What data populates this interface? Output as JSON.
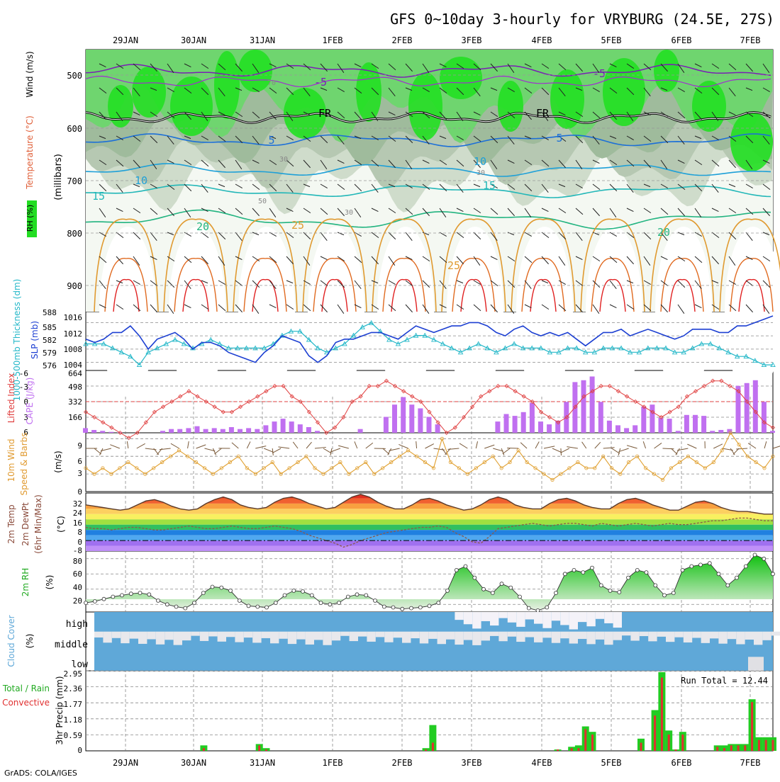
{
  "title": "GFS 0~10day 3-hourly for VRYBURG (24.5E, 27S)",
  "footer": "GrADS: COLA/IGES",
  "dates": [
    "29JAN",
    "30JAN",
    "31JAN",
    "1FEB",
    "2FEB",
    "3FEB",
    "4FEB",
    "5FEB",
    "6FEB",
    "7FEB"
  ],
  "panels": {
    "upper": {
      "ylabel_rh": "RH (%)",
      "ylabel_temp": "Temperature (°C)",
      "ylabel_wind": "Wind (m/s)",
      "ylabel_units": "(millibars)",
      "yticks": [
        "500",
        "600",
        "700",
        "800",
        "900"
      ],
      "contour_labels": [
        "-5",
        "-5",
        "FR",
        "FR",
        "5",
        "5",
        "10",
        "10",
        "15",
        "15",
        "20",
        "20",
        "25",
        "25",
        "30",
        "30",
        "30",
        "50",
        "70"
      ]
    },
    "slp": {
      "ylabel_left": "1000-500mb Thickness (dm)",
      "ylabel_right": "SLP (mb)",
      "yticks_left": [
        "588",
        "585",
        "582",
        "579",
        "576"
      ],
      "yticks_right": [
        "1016",
        "1012",
        "1008",
        "1004"
      ]
    },
    "cape": {
      "ylabel_left": "Lifted Index",
      "ylabel_right": "CAPE (J/kg)",
      "yticks_left": [
        "-6",
        "-3",
        "0",
        "3",
        "6"
      ],
      "yticks_right": [
        "664",
        "498",
        "332",
        "166"
      ]
    },
    "wind10": {
      "ylabel_left": "10m Wind",
      "ylabel_mid": "Speed & Barbs",
      "ylabel_right": "(m/s)",
      "yticks": [
        "9",
        "6",
        "3",
        "0"
      ]
    },
    "temp2m": {
      "ylabel_1": "2m Temp",
      "ylabel_2": "2m DewPt",
      "ylabel_3": "(6hr Min/Max)",
      "ylabel_unit": "(°C)",
      "yticks": [
        "32",
        "24",
        "16",
        "8",
        "0",
        "-8"
      ]
    },
    "rh2m": {
      "ylabel": "2m RH",
      "ylabel_unit": "(%)",
      "yticks": [
        "80",
        "60",
        "40",
        "20"
      ]
    },
    "cloud": {
      "ylabel": "Cloud Cover",
      "ylabel_unit": "(%)",
      "levels": [
        "high",
        "middle",
        "low"
      ]
    },
    "precip": {
      "ylabel_1": "Total / Rain",
      "ylabel_2": "Convective",
      "ylabel_3": "3hr Precip (mm)",
      "yticks": [
        "2.95",
        "2.36",
        "1.77",
        "1.18",
        "0.59",
        "0"
      ],
      "run_total": "Run Total  =  12.44"
    }
  },
  "colors": {
    "rh_green": "#00cc00",
    "slp_line": "#1c3fd2",
    "thickness_line": "#22b7c8",
    "lifted_index": "#e04040",
    "cape_bars": "#c070f0",
    "wind_speed": "#e0a030",
    "rh_2m": "#22cc22",
    "cloud_blue": "#5fa8d8",
    "precip_total": "#22cc22",
    "precip_conv": "#e03030"
  },
  "chart_data": [
    {
      "type": "line",
      "title": "1000-500mb Thickness (dm) / SLP (mb)",
      "x_unit": "3-hourly steps from 28JAN",
      "series": [
        {
          "name": "SLP (mb)",
          "values": [
            1011,
            1010,
            1011,
            1013,
            1013,
            1015,
            1012,
            1008,
            1011,
            1012,
            1013,
            1011,
            1008,
            1010,
            1010,
            1009,
            1007,
            1006,
            1005,
            1004,
            1007,
            1009,
            1012,
            1011,
            1010,
            1006,
            1004,
            1006,
            1010,
            1011,
            1011,
            1012,
            1013,
            1013,
            1012,
            1011,
            1013,
            1015,
            1014,
            1013,
            1014,
            1015,
            1015,
            1016,
            1016,
            1015,
            1013,
            1012,
            1014,
            1015,
            1013,
            1012,
            1013,
            1012,
            1013,
            1011,
            1009,
            1011,
            1013,
            1013,
            1014,
            1012,
            1013,
            1014,
            1013,
            1012,
            1011,
            1012,
            1014,
            1014,
            1014,
            1013,
            1013,
            1015,
            1015,
            1016,
            1017,
            1018
          ]
        },
        {
          "name": "1000-500mb Thickness (dm)",
          "values": [
            581,
            581,
            581,
            580,
            579,
            578,
            576,
            579,
            580,
            581,
            582,
            581,
            580,
            581,
            582,
            581,
            580,
            580,
            580,
            580,
            580,
            581,
            583,
            584,
            584,
            582,
            580,
            579,
            580,
            581,
            583,
            585,
            586,
            584,
            582,
            581,
            582,
            583,
            583,
            582,
            581,
            580,
            579,
            580,
            581,
            580,
            579,
            580,
            581,
            580,
            580,
            580,
            579,
            579,
            580,
            580,
            579,
            579,
            580,
            580,
            580,
            579,
            579,
            580,
            580,
            580,
            579,
            579,
            580,
            581,
            581,
            580,
            579,
            578,
            578,
            577,
            576,
            576
          ]
        }
      ],
      "ylim_slp": [
        1002,
        1018
      ],
      "ylim_thickness": [
        575,
        588
      ]
    },
    {
      "type": "bar",
      "title": "Lifted Index / CAPE (J/kg)",
      "series": [
        {
          "name": "CAPE (J/kg)",
          "values": [
            50,
            30,
            20,
            10,
            5,
            0,
            0,
            0,
            0,
            20,
            40,
            40,
            50,
            70,
            40,
            50,
            40,
            60,
            40,
            50,
            40,
            80,
            120,
            150,
            120,
            90,
            60,
            20,
            0,
            0,
            0,
            0,
            40,
            0,
            0,
            170,
            300,
            380,
            300,
            260,
            170,
            90,
            0,
            0,
            0,
            0,
            0,
            0,
            120,
            200,
            180,
            220,
            320,
            120,
            90,
            130,
            330,
            540,
            560,
            600,
            330,
            130,
            80,
            50,
            80,
            280,
            300,
            160,
            150,
            20,
            190,
            190,
            180,
            20,
            30,
            40,
            500,
            530,
            560,
            330,
            20
          ]
        },
        {
          "name": "Lifted Index",
          "values": [
            2,
            3,
            4,
            5,
            6,
            7,
            6,
            4,
            2,
            1,
            0,
            -1,
            -2,
            -1,
            0,
            1,
            2,
            2,
            1,
            0,
            -1,
            -2,
            -3,
            -3,
            -1,
            0,
            2,
            4,
            6,
            5,
            3,
            0,
            -1,
            -3,
            -3,
            -4,
            -3,
            -2,
            -1,
            0,
            2,
            4,
            6,
            5,
            3,
            1,
            -1,
            -2,
            -3,
            -3,
            -2,
            -1,
            0,
            2,
            3,
            4,
            3,
            1,
            -1,
            -2,
            -3,
            -3,
            -2,
            -1,
            0,
            1,
            2,
            3,
            2,
            1,
            -1,
            -2,
            -3,
            -4,
            -4,
            -3,
            -2,
            0,
            2,
            4,
            5
          ]
        }
      ],
      "ylim_cape": [
        0,
        664
      ],
      "ylim_li": [
        -6,
        6
      ]
    },
    {
      "type": "line",
      "title": "10m Wind Speed & Barbs (m/s)",
      "series": [
        {
          "name": "Speed",
          "values": [
            4,
            3,
            4,
            3,
            4,
            5,
            4,
            3,
            4,
            5,
            6,
            7,
            6,
            5,
            4,
            3,
            4,
            5,
            6,
            4,
            3,
            4,
            5,
            3,
            4,
            5,
            6,
            4,
            3,
            4,
            5,
            3,
            4,
            5,
            3,
            4,
            5,
            6,
            7,
            6,
            5,
            4,
            9,
            5,
            4,
            3,
            4,
            5,
            6,
            4,
            5,
            7,
            5,
            4,
            3,
            2,
            3,
            4,
            5,
            4,
            4,
            6,
            4,
            3,
            5,
            6,
            4,
            3,
            2,
            4,
            5,
            6,
            5,
            4,
            5,
            7,
            10,
            8,
            6,
            5,
            4,
            6
          ]
        }
      ],
      "ylim": [
        0,
        10
      ]
    },
    {
      "type": "area",
      "title": "2m Temp / 2m DewPt (6hr Min/Max) (°C)",
      "series": [
        {
          "name": "2m Temp",
          "values": [
            27,
            26,
            25,
            24,
            23,
            24,
            27,
            30,
            31,
            29,
            26,
            24,
            23,
            24,
            28,
            31,
            33,
            31,
            27,
            25,
            24,
            25,
            29,
            32,
            33,
            31,
            28,
            26,
            24,
            25,
            29,
            33,
            35,
            33,
            29,
            26,
            24,
            24,
            27,
            31,
            32,
            30,
            27,
            25,
            23,
            24,
            27,
            31,
            33,
            31,
            27,
            25,
            24,
            24,
            28,
            31,
            32,
            30,
            27,
            25,
            24,
            24,
            28,
            31,
            32,
            30,
            27,
            25,
            23,
            23,
            26,
            29,
            30,
            28,
            25,
            23,
            22,
            22,
            21,
            20,
            20
          ]
        },
        {
          "name": "2m DewPt",
          "values": [
            10,
            9,
            9,
            8,
            9,
            10,
            10,
            9,
            8,
            8,
            9,
            10,
            11,
            10,
            9,
            9,
            10,
            11,
            10,
            9,
            9,
            10,
            11,
            10,
            9,
            7,
            4,
            2,
            0,
            -2,
            -5,
            -3,
            0,
            2,
            4,
            6,
            7,
            8,
            9,
            10,
            10,
            11,
            10,
            6,
            3,
            -1,
            -2,
            3,
            9,
            10,
            11,
            12,
            13,
            12,
            11,
            12,
            13,
            13,
            12,
            11,
            13,
            12,
            11,
            12,
            13,
            12,
            11,
            12,
            13,
            12,
            12,
            13,
            14,
            15,
            15,
            16,
            17,
            17,
            16,
            15,
            15
          ]
        }
      ],
      "ylim": [
        -8,
        36
      ]
    },
    {
      "type": "area",
      "title": "2m RH (%)",
      "series": [
        {
          "name": "2m RH",
          "values": [
            22,
            24,
            27,
            30,
            32,
            34,
            35,
            33,
            25,
            20,
            17,
            15,
            22,
            35,
            43,
            42,
            38,
            25,
            18,
            17,
            16,
            22,
            32,
            38,
            37,
            32,
            22,
            20,
            22,
            30,
            33,
            32,
            25,
            17,
            16,
            14,
            15,
            16,
            18,
            22,
            38,
            65,
            70,
            55,
            40,
            35,
            47,
            42,
            30,
            15,
            12,
            16,
            35,
            60,
            65,
            62,
            68,
            45,
            38,
            36,
            55,
            65,
            62,
            45,
            32,
            35,
            65,
            70,
            72,
            74,
            60,
            45,
            55,
            70,
            85,
            80,
            60
          ]
        }
      ],
      "ylim": [
        10,
        90
      ]
    },
    {
      "type": "bar",
      "title": "3hr Precip (mm)",
      "series": [
        {
          "name": "Total / Rain",
          "values": [
            0,
            0,
            0,
            0,
            0,
            0,
            0,
            0,
            0,
            0,
            0,
            0,
            0,
            0,
            0,
            0,
            0,
            0.2,
            0,
            0,
            0,
            0,
            0,
            0,
            0,
            0.25,
            0.1,
            0,
            0,
            0,
            0,
            0,
            0,
            0,
            0,
            0,
            0,
            0,
            0,
            0,
            0,
            0,
            0,
            0,
            0,
            0,
            0,
            0,
            0,
            0.1,
            0.95,
            0,
            0,
            0,
            0,
            0,
            0,
            0,
            0,
            0,
            0,
            0,
            0,
            0,
            0,
            0,
            0,
            0,
            0.05,
            0,
            0.15,
            0.2,
            0.9,
            0.7,
            0,
            0,
            0,
            0,
            0,
            0,
            0.45,
            0,
            1.5,
            2.9,
            0.75,
            0.05,
            0.7,
            0,
            0,
            0,
            0,
            0.2,
            0.2,
            0.25,
            0.25,
            0.25,
            1.9,
            0.5,
            0.5,
            0.5
          ]
        },
        {
          "name": "Convective",
          "values": [
            0,
            0,
            0,
            0,
            0,
            0,
            0,
            0,
            0,
            0,
            0,
            0,
            0,
            0,
            0,
            0,
            0,
            0.1,
            0,
            0,
            0,
            0,
            0,
            0,
            0,
            0.2,
            0.05,
            0,
            0,
            0,
            0,
            0,
            0,
            0,
            0,
            0,
            0,
            0,
            0,
            0,
            0,
            0,
            0,
            0,
            0,
            0,
            0,
            0,
            0,
            0.05,
            0.3,
            0,
            0,
            0,
            0,
            0,
            0,
            0,
            0,
            0,
            0,
            0,
            0,
            0,
            0,
            0,
            0,
            0,
            0.05,
            0,
            0.1,
            0.1,
            0.8,
            0.6,
            0,
            0,
            0,
            0,
            0,
            0,
            0.3,
            0,
            1.3,
            2.7,
            0.6,
            0.05,
            0.6,
            0,
            0,
            0,
            0,
            0.15,
            0.1,
            0.2,
            0.2,
            0.2,
            1.8,
            0.4,
            0.4,
            0.4
          ]
        }
      ],
      "ylim": [
        0,
        2.95
      ]
    }
  ]
}
